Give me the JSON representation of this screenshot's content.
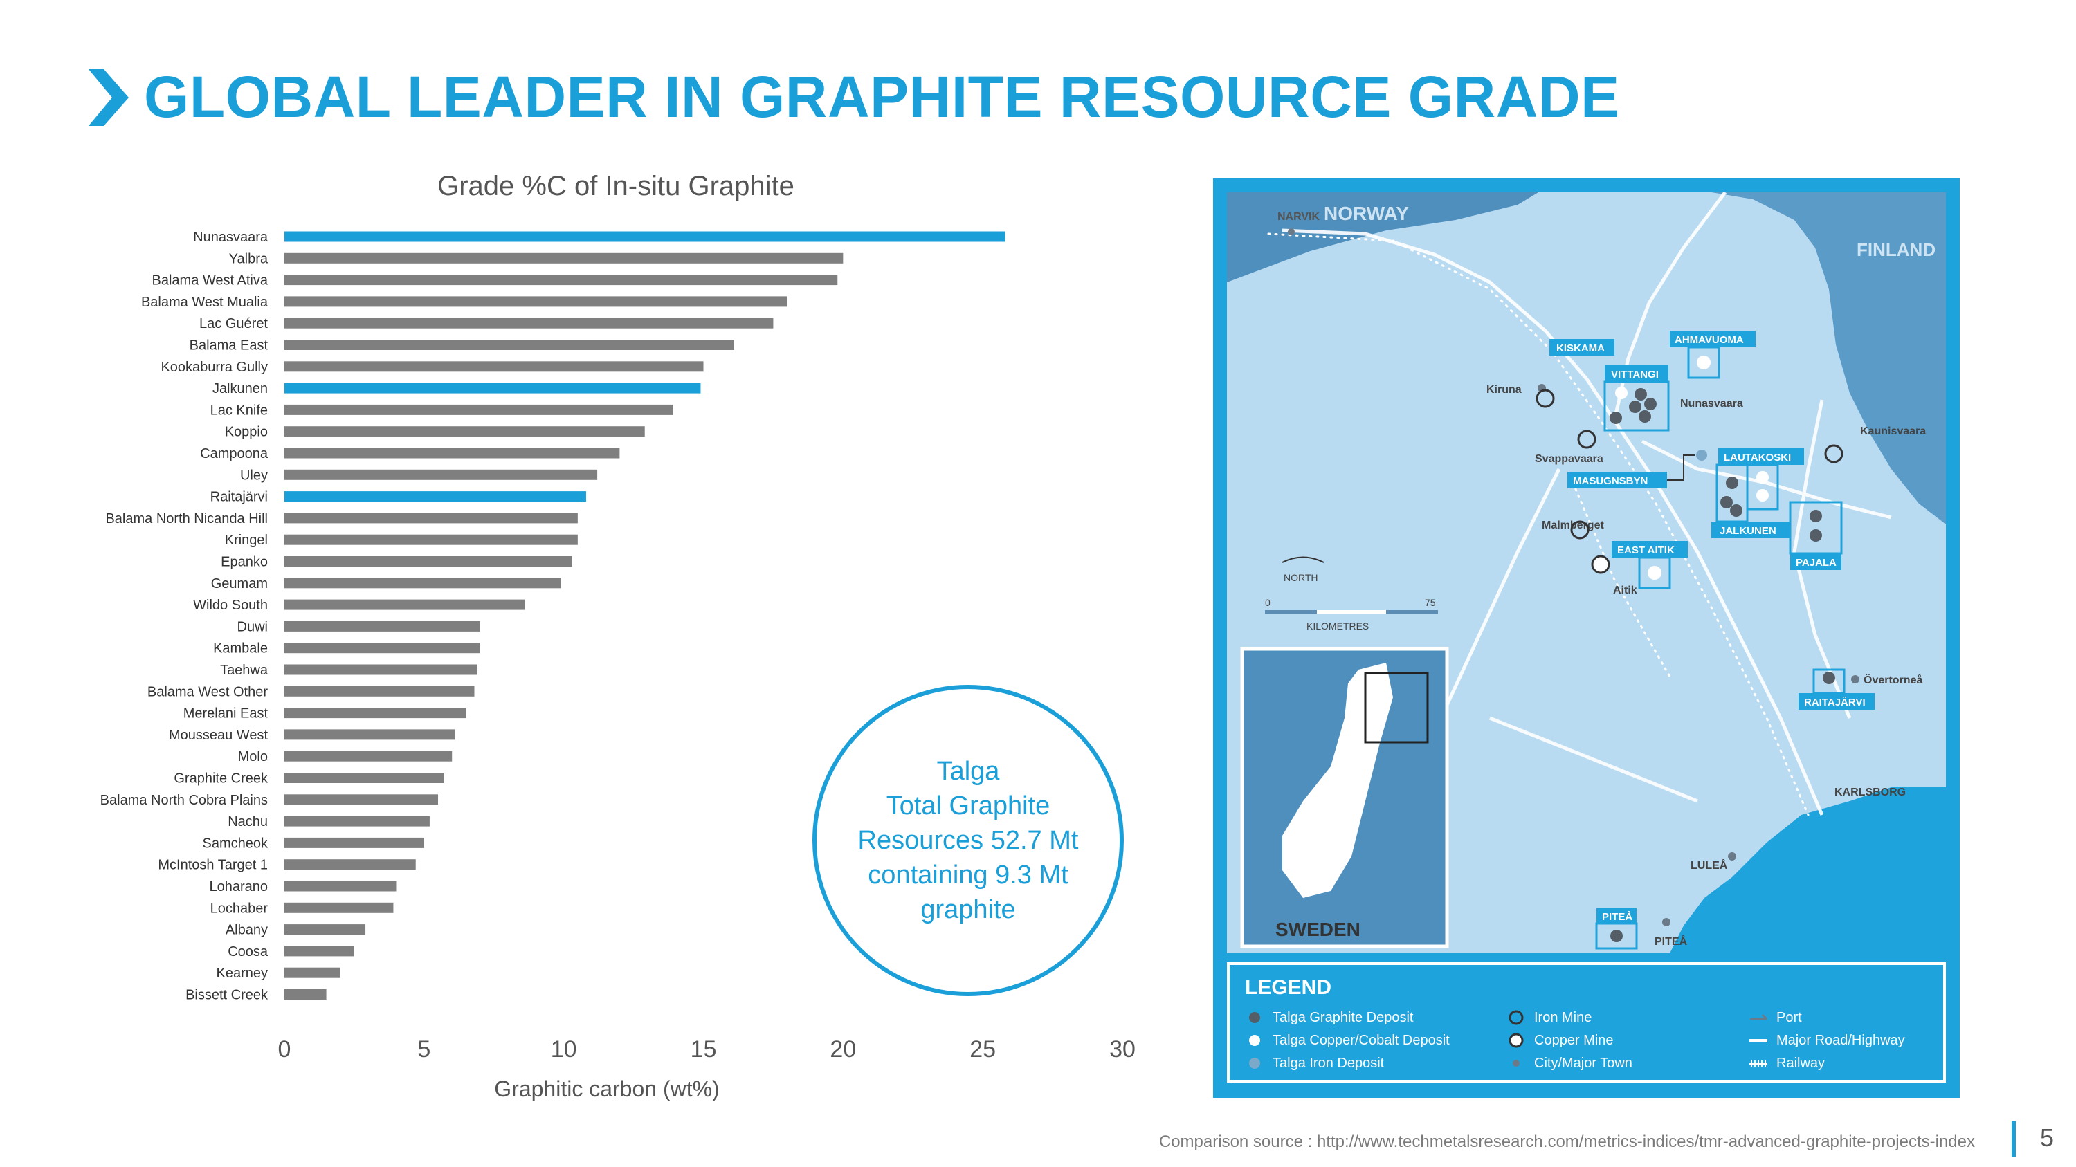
{
  "page": {
    "title": "GLOBAL LEADER IN GRAPHITE RESOURCE GRADE",
    "page_number": "5"
  },
  "footer": {
    "source": "Comparison source : http://www.techmetalsresearch.com/metrics-indices/tmr-advanced-graphite-projects-index"
  },
  "chart_data": {
    "type": "bar",
    "orientation": "horizontal",
    "title": "Grade %C of In-situ Graphite",
    "xlabel": "Graphitic carbon (wt%)",
    "ylabel": "",
    "xlim": [
      0,
      30
    ],
    "xticks": [
      0,
      5,
      10,
      15,
      20,
      25,
      30
    ],
    "grid": false,
    "colors": {
      "default": "#7f7f7f",
      "highlight": "#1a9fd9"
    },
    "categories": [
      "Nunasvaara",
      "Yalbra",
      "Balama West Ativa",
      "Balama West Mualia",
      "Lac Guéret",
      "Balama East",
      "Kookaburra Gully",
      "Jalkunen",
      "Lac Knife",
      "Koppio",
      "Campoona",
      "Uley",
      "Raitajärvi",
      "Balama North Nicanda Hill",
      "Kringel",
      "Epanko",
      "Geumam",
      "Wildo South",
      "Duwi",
      "Kambale",
      "Taehwa",
      "Balama West Other",
      "Merelani East",
      "Mousseau West",
      "Molo",
      "Graphite Creek",
      "Balama North Cobra Plains",
      "Nachu",
      "Samcheok",
      "McIntosh Target 1",
      "Loharano",
      "Lochaber",
      "Albany",
      "Coosa",
      "Kearney",
      "Bissett Creek"
    ],
    "values": [
      25.8,
      20.0,
      19.8,
      18.0,
      17.5,
      16.1,
      15.0,
      14.9,
      13.9,
      12.9,
      12.0,
      11.2,
      10.8,
      10.5,
      10.5,
      10.3,
      9.9,
      8.6,
      7.0,
      7.0,
      6.9,
      6.8,
      6.5,
      6.1,
      6.0,
      5.7,
      5.5,
      5.2,
      5.0,
      4.7,
      4.0,
      3.9,
      2.9,
      2.5,
      2.0,
      1.5
    ],
    "highlight": [
      "Nunasvaara",
      "Jalkunen",
      "Raitajärvi"
    ]
  },
  "callout": {
    "lines": [
      "Talga",
      "Total Graphite",
      "Resources 52.7 Mt",
      "containing 9.3 Mt",
      "graphite"
    ]
  },
  "map": {
    "countries": {
      "norway": "NORWAY",
      "finland": "FINLAND",
      "sweden": "SWEDEN"
    },
    "scale": {
      "north": "NORTH",
      "zero": "0",
      "max": "75",
      "unit": "KILOMETRES"
    },
    "towns": {
      "narvik": "NARVIK",
      "kiruna": "Kiruna",
      "svappavaara": "Svappavaara",
      "malmberget": "Malmberget",
      "aitik": "Aitik",
      "nunasvaara": "Nunasvaara",
      "kaunisvaara": "Kaunisvaara",
      "overtornea": "Övertorneå",
      "karlsborg": "KARLSBORG",
      "lulea": "LULEÅ",
      "pitea": "PITEÅ"
    },
    "projects": {
      "kiskama": "KISKAMA",
      "ahmavuoma": "AHMAVUOMA",
      "vittangi": "VITTANGI",
      "lautakoski": "LAUTAKOSKI",
      "masugnsbyn": "MASUGNSBYN",
      "jalkunen": "JALKUNEN",
      "east_aitik": "EAST AITIK",
      "pajala": "PAJALA",
      "raitajarvi": "RAITAJÄRVI",
      "pitea": "PITEÅ"
    }
  },
  "legend": {
    "title": "LEGEND",
    "items": [
      "Talga Graphite Deposit",
      "Talga Copper/Cobalt Deposit",
      "Talga Iron Deposit",
      "Iron Mine",
      "Copper Mine",
      "City/Major Town",
      "Port",
      "Major Road/Highway",
      "Railway"
    ]
  }
}
